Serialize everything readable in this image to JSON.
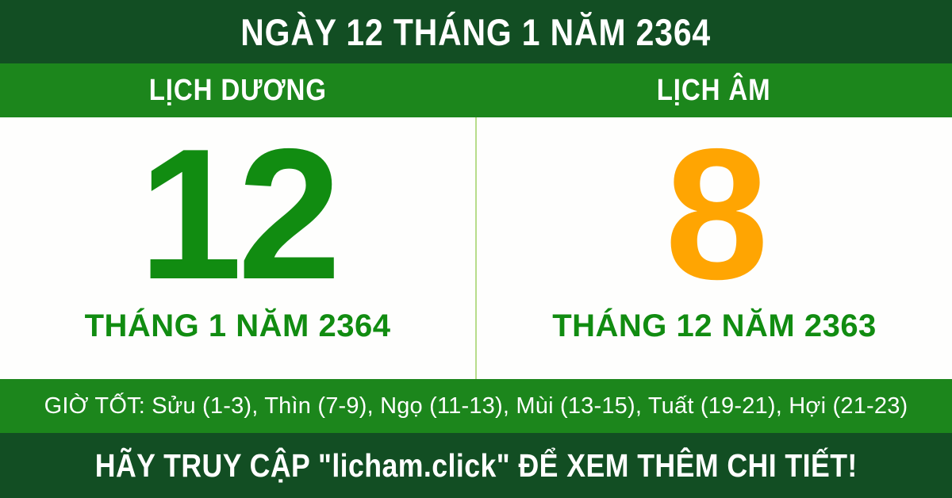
{
  "header": {
    "title": "NGÀY 12 THÁNG 1 NĂM 2364"
  },
  "calendar": {
    "solar": {
      "label": "LỊCH DƯƠNG",
      "day": "12",
      "month_year": "THÁNG 1 NĂM 2364"
    },
    "lunar": {
      "label": "LỊCH ÂM",
      "day": "8",
      "month_year": "THÁNG 12 NĂM 2363"
    }
  },
  "good_hours": {
    "label": "GIỜ TỐT:",
    "hours": [
      {
        "name": "Sửu",
        "range": "1-3"
      },
      {
        "name": "Thìn",
        "range": "7-9"
      },
      {
        "name": "Ngọ",
        "range": "11-13"
      },
      {
        "name": "Mùi",
        "range": "13-15"
      },
      {
        "name": "Tuất",
        "range": "19-21"
      },
      {
        "name": "Hợi",
        "range": "21-23"
      }
    ],
    "text": "GIỜ TỐT: Sửu (1-3), Thìn (7-9), Ngọ (11-13), Mùi (13-15), Tuất (19-21), Hợi (21-23)"
  },
  "footer": {
    "text": "HÃY TRUY CẬP \"licham.click\" ĐỂ XEM THÊM CHI TIẾT!"
  },
  "colors": {
    "dark_green": "#124E23",
    "medium_green": "#1C861C",
    "bright_green": "#118C11",
    "orange": "#FFA502",
    "divider_green": "#B7DC8B",
    "panel_white": "#FEFEFD",
    "text_white": "#FFFFFF"
  }
}
